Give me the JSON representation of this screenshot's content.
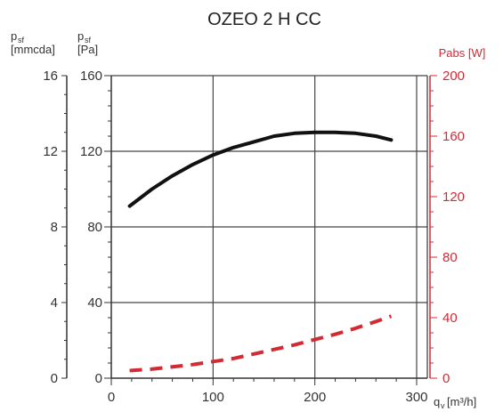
{
  "chart_data": {
    "type": "line",
    "title": "OZEO 2 H CC",
    "x_axis": {
      "label_main": "q",
      "label_sub": "v",
      "label_unit": "[m³/h]",
      "range": [
        0,
        300
      ],
      "ticks": [
        "0",
        "100",
        "200",
        "300"
      ],
      "grid": true
    },
    "y_axis_left_outer": {
      "label_main": "p",
      "label_sub": "sf",
      "label_unit": "[mmcda]",
      "range": [
        0,
        16
      ],
      "ticks": [
        "0",
        "4",
        "8",
        "12",
        "16"
      ]
    },
    "y_axis_left_inner": {
      "label_main": "p",
      "label_sub": "sf",
      "label_unit": "[Pa]",
      "range": [
        0,
        160
      ],
      "ticks": [
        "0",
        "40",
        "80",
        "120",
        "160"
      ],
      "grid": true
    },
    "y_axis_right": {
      "label": "Pabs [W]",
      "range": [
        0,
        200
      ],
      "ticks": [
        "0",
        "40",
        "80",
        "120",
        "160",
        "200"
      ],
      "color": "#d12b35"
    },
    "series": [
      {
        "axis": "left_inner",
        "style": "solid",
        "color": "#111111",
        "x": [
          18,
          40,
          60,
          80,
          100,
          120,
          140,
          160,
          180,
          200,
          220,
          240,
          260,
          275
        ],
        "y": [
          91,
          100,
          107,
          113,
          118,
          122,
          125,
          128,
          129.5,
          130,
          130,
          129.5,
          128,
          126
        ]
      },
      {
        "axis": "right",
        "style": "dashed",
        "color": "#d12b35",
        "x": [
          18,
          40,
          60,
          80,
          100,
          120,
          140,
          160,
          180,
          200,
          220,
          240,
          260,
          275
        ],
        "y": [
          5,
          6,
          7.5,
          9,
          11,
          13,
          16,
          19,
          22,
          25.5,
          29,
          33,
          37.5,
          41
        ]
      }
    ]
  }
}
